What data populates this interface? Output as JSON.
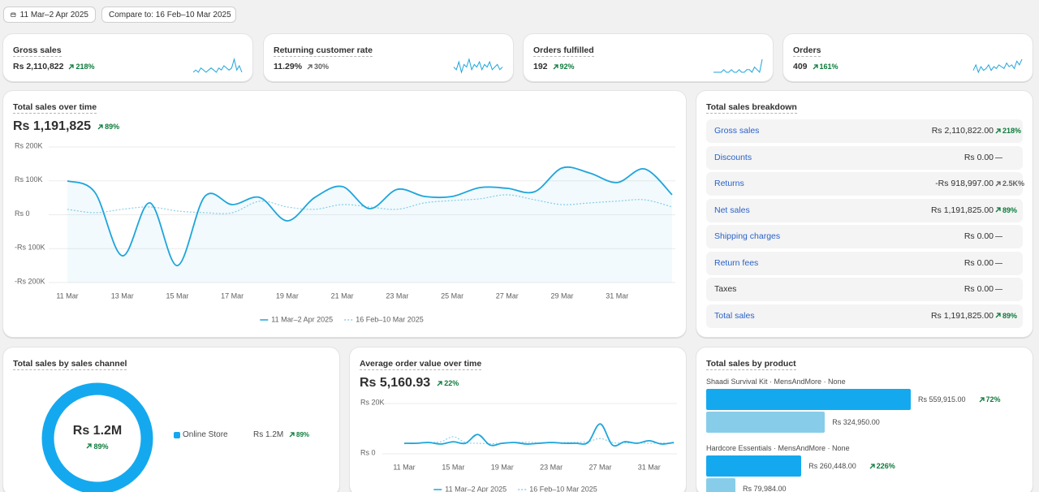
{
  "header": {
    "date_range": "11 Mar–2 Apr 2025",
    "compare": "Compare to: 16 Feb–10 Mar 2025"
  },
  "kpis": [
    {
      "label": "Gross sales",
      "value": "Rs 2,110,822",
      "change": "218%",
      "change_color": "#0c7a3a",
      "color": "#1ea5dc",
      "sparkline": [
        3,
        4,
        3,
        5,
        4,
        3,
        4,
        5,
        4,
        3,
        5,
        4,
        6,
        5,
        4,
        5,
        9,
        4,
        6,
        3
      ]
    },
    {
      "label": "Returning customer rate",
      "value": "11.29%",
      "change": "30%",
      "change_color": "#616161",
      "color": "#1ea5dc",
      "sparkline": [
        5,
        4,
        7,
        3,
        6,
        5,
        8,
        4,
        6,
        5,
        7,
        4,
        6,
        5,
        7,
        4,
        5,
        6,
        4,
        5
      ]
    },
    {
      "label": "Orders fulfilled",
      "value": "192",
      "change": "92%",
      "change_color": "#0c7a3a",
      "color": "#1ea5dc",
      "sparkline": [
        2,
        2,
        2,
        2,
        3,
        2,
        2,
        3,
        2,
        2,
        3,
        2,
        2,
        3,
        3,
        2,
        4,
        3,
        2,
        7
      ]
    },
    {
      "label": "Orders",
      "value": "409",
      "change": "161%",
      "change_color": "#0c7a3a",
      "color": "#1ea5dc",
      "sparkline": [
        6,
        9,
        5,
        8,
        6,
        7,
        9,
        6,
        8,
        7,
        9,
        8,
        7,
        10,
        8,
        9,
        7,
        11,
        9,
        12
      ]
    }
  ],
  "chart_data": [
    {
      "type": "line",
      "title": "Total sales over time",
      "total": "Rs 1,191,825",
      "change": "89%",
      "change_color": "#0c7a3a",
      "categories": [
        "11 Mar",
        null,
        "13 Mar",
        null,
        "15 Mar",
        null,
        "17 Mar",
        null,
        "19 Mar",
        null,
        "21 Mar",
        null,
        "23 Mar",
        null,
        "25 Mar",
        null,
        "27 Mar",
        null,
        "29 Mar",
        null,
        "31 Mar",
        null,
        null
      ],
      "series": [
        {
          "name": "11 Mar–2 Apr 2025",
          "color": "#1ea5dc",
          "area": true,
          "values": [
            100000,
            66000,
            -121000,
            35000,
            -150000,
            54000,
            30000,
            51000,
            -18000,
            51000,
            83000,
            18000,
            75000,
            54000,
            54000,
            80000,
            78000,
            68000,
            138000,
            123000,
            95000,
            135000,
            59000
          ]
        },
        {
          "name": "16 Feb–10 Mar 2025",
          "color": "#8ccfe8",
          "dashed": true,
          "values": [
            16000,
            6000,
            16000,
            23000,
            11000,
            6000,
            6000,
            40000,
            23000,
            16000,
            30000,
            23000,
            16000,
            35000,
            42000,
            47000,
            59000,
            44000,
            30000,
            35000,
            40000,
            44000,
            23000
          ]
        }
      ],
      "ylim": [
        -200000,
        200000
      ],
      "yticks": [
        {
          "value": 200000,
          "label": "Rs 200K"
        },
        {
          "value": 100000,
          "label": "Rs 100K"
        },
        {
          "value": 0,
          "label": "Rs 0"
        },
        {
          "value": -100000,
          "label": "-Rs 100K"
        },
        {
          "value": -200000,
          "label": "-Rs 200K"
        }
      ],
      "grid": true
    },
    {
      "type": "line",
      "title": "Average order value over time",
      "total": "Rs 5,160.93",
      "change": "22%",
      "change_color": "#0c7a3a",
      "categories": [
        "11 Mar",
        null,
        null,
        null,
        "15 Mar",
        null,
        null,
        null,
        "19 Mar",
        null,
        null,
        null,
        "23 Mar",
        null,
        null,
        null,
        "27 Mar",
        null,
        null,
        null,
        "31 Mar",
        null,
        null
      ],
      "series": [
        {
          "name": "11 Mar–2 Apr 2025",
          "color": "#1ea5dc",
          "values": [
            4200,
            4200,
            4500,
            3900,
            4800,
            4200,
            7700,
            3500,
            4200,
            4500,
            3900,
            4200,
            4500,
            4200,
            4200,
            4500,
            11900,
            3500,
            4800,
            4200,
            5200,
            3900,
            4500
          ]
        },
        {
          "name": "16 Feb–10 Mar 2025",
          "color": "#8ccfe8",
          "dashed": true,
          "values": [
            4000,
            4300,
            4500,
            4800,
            6800,
            4500,
            4200,
            4000,
            4300,
            4500,
            4600,
            4400,
            4300,
            4500,
            4600,
            4800,
            6100,
            4500,
            4300,
            4400,
            4200,
            4300,
            4100
          ]
        }
      ],
      "ylim": [
        0,
        20000
      ],
      "yticks": [
        {
          "value": 20000,
          "label": "Rs 20K"
        },
        {
          "value": 0,
          "label": "Rs 0"
        }
      ],
      "grid": true
    }
  ],
  "breakdown": {
    "title": "Total sales breakdown",
    "rows": [
      {
        "label": "Gross sales",
        "value": "Rs 2,110,822.00",
        "change": "218%",
        "label_color": "#2a62c9",
        "change_color": "#0c7a3a"
      },
      {
        "label": "Discounts",
        "value": "Rs 0.00",
        "change": "—",
        "label_color": "#2a62c9",
        "change_color": "#616161"
      },
      {
        "label": "Returns",
        "value": "-Rs 918,997.00",
        "change": "2.5K%",
        "label_color": "#2a62c9",
        "change_color": "#616161"
      },
      {
        "label": "Net sales",
        "value": "Rs 1,191,825.00",
        "change": "89%",
        "label_color": "#2a62c9",
        "change_color": "#0c7a3a"
      },
      {
        "label": "Shipping charges",
        "value": "Rs 0.00",
        "change": "—",
        "label_color": "#2a62c9",
        "change_color": "#616161"
      },
      {
        "label": "Return fees",
        "value": "Rs 0.00",
        "change": "—",
        "label_color": "#2a62c9",
        "change_color": "#616161"
      },
      {
        "label": "Taxes",
        "value": "Rs 0.00",
        "change": "—",
        "label_color": "#303030",
        "change_color": "#616161"
      },
      {
        "label": "Total sales",
        "value": "Rs 1,191,825.00",
        "change": "89%",
        "label_color": "#2a62c9",
        "change_color": "#0c7a3a"
      }
    ]
  },
  "channel": {
    "title": "Total sales by sales channel",
    "total": "Rs 1.2M",
    "change": "89%",
    "change_color": "#0c7a3a",
    "channels": [
      {
        "name": "Online Store",
        "value": "Rs 1.2M",
        "change": "89%",
        "color": "#14a9ef",
        "change_color": "#0c7a3a"
      }
    ]
  },
  "products": {
    "title": "Total sales by product",
    "current_color": "#14a9ef",
    "previous_color": "#87cde9",
    "items": [
      {
        "label": "Shaadi Survival Kit · MensAndMore · None",
        "value": 559915,
        "value_label": "Rs 559,915.00",
        "change": "72%",
        "change_color": "#0c7a3a",
        "previous": 324950,
        "previous_label": "Rs 324,950.00"
      },
      {
        "label": "Hardcore Essentials · MensAndMore · None",
        "value": 260448,
        "value_label": "Rs 260,448.00",
        "change": "226%",
        "change_color": "#0c7a3a",
        "previous": 79984,
        "previous_label": "Rs 79,984.00"
      }
    ]
  }
}
